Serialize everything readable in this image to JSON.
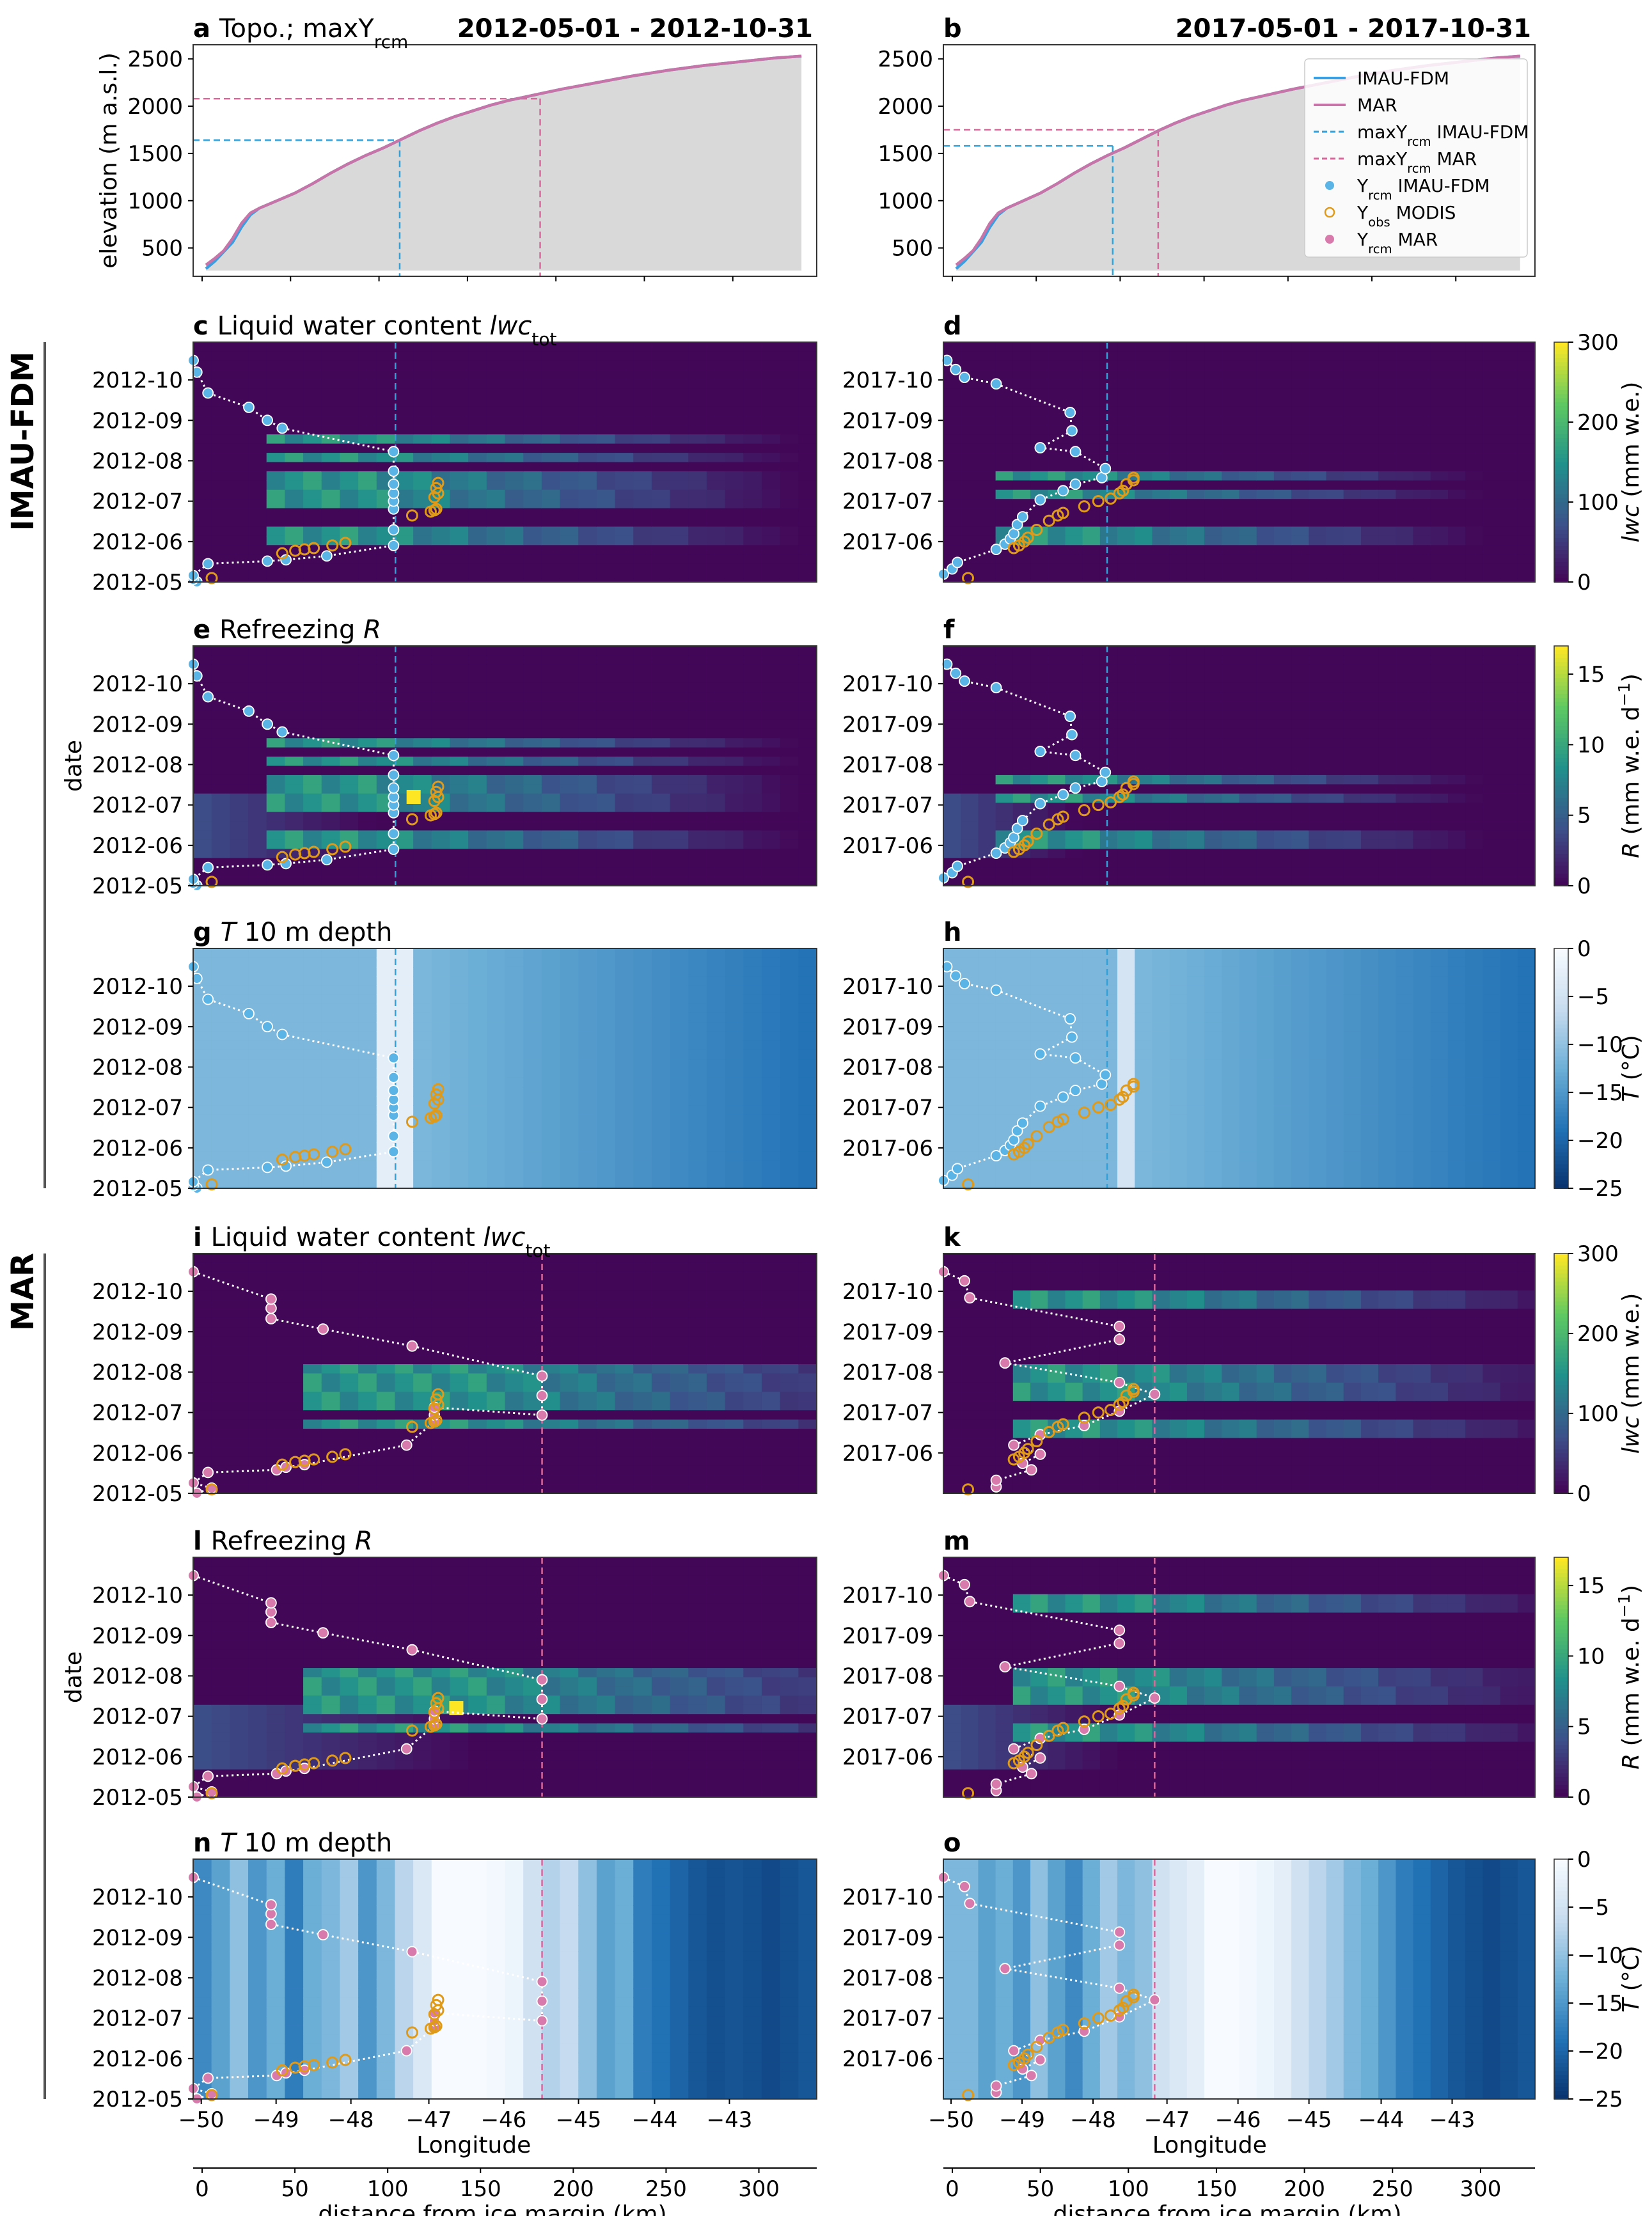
{
  "figure": {
    "row_labels": [
      "IMAU-FDM",
      "MAR"
    ],
    "bottom_xlabels": [
      "Longitude",
      "distance from ice margin (km)"
    ],
    "ylabel_date": "date"
  },
  "chart_data": [
    {
      "panel": "a",
      "type": "area",
      "column": "left",
      "title": "Topo.; maxY",
      "title_sub": "rcm",
      "title_right": "2012-05-01 - 2012-10-31",
      "ylabel": "elevation (m a.s.l.)",
      "xlim": [
        0,
        340
      ],
      "ylim": [
        200,
        2650
      ],
      "yticks": [
        500,
        1000,
        1500,
        2000,
        2500
      ],
      "x": [
        0,
        5,
        10,
        15,
        20,
        25,
        30,
        40,
        50,
        60,
        70,
        80,
        90,
        100,
        110,
        120,
        130,
        140,
        150,
        160,
        170,
        180,
        190,
        200,
        220,
        240,
        260,
        280,
        300,
        320,
        335
      ],
      "series": [
        {
          "name": "IMAU-FDM",
          "values": [
            280,
            360,
            460,
            560,
            720,
            850,
            920,
            1000,
            1080,
            1180,
            1290,
            1390,
            1480,
            1560,
            1650,
            1740,
            1820,
            1890,
            1950,
            2010,
            2060,
            2100,
            2140,
            2180,
            2250,
            2320,
            2380,
            2430,
            2470,
            2510,
            2530
          ]
        },
        {
          "name": "MAR",
          "values": [
            320,
            390,
            470,
            600,
            760,
            870,
            920,
            1000,
            1080,
            1180,
            1290,
            1390,
            1480,
            1560,
            1650,
            1740,
            1820,
            1890,
            1950,
            2010,
            2060,
            2100,
            2140,
            2180,
            2250,
            2320,
            2380,
            2430,
            2470,
            2510,
            2530
          ]
        }
      ],
      "max_lines": [
        {
          "name": "maxY_rcm IMAU-FDM",
          "x": 109,
          "y": 1640,
          "color": "#34a0d8"
        },
        {
          "name": "maxY_rcm MAR",
          "x": 188,
          "y": 2080,
          "color": "#d9689d"
        }
      ]
    },
    {
      "panel": "b",
      "type": "area",
      "column": "right",
      "title": "",
      "title_right": "2017-05-01 - 2017-10-31",
      "xlim": [
        0,
        340
      ],
      "ylim": [
        200,
        2650
      ],
      "yticks": [
        500,
        1000,
        1500,
        2000,
        2500
      ],
      "x": [
        0,
        5,
        10,
        15,
        20,
        25,
        30,
        40,
        50,
        60,
        70,
        80,
        90,
        100,
        110,
        120,
        130,
        140,
        150,
        160,
        170,
        180,
        190,
        200,
        220,
        240,
        260,
        280,
        300,
        320,
        335
      ],
      "series": [
        {
          "name": "IMAU-FDM",
          "values": [
            280,
            360,
            460,
            560,
            720,
            850,
            920,
            1000,
            1080,
            1180,
            1290,
            1390,
            1480,
            1560,
            1650,
            1740,
            1820,
            1890,
            1950,
            2010,
            2060,
            2100,
            2140,
            2180,
            2250,
            2320,
            2380,
            2430,
            2470,
            2510,
            2530
          ]
        },
        {
          "name": "MAR",
          "values": [
            320,
            390,
            470,
            600,
            760,
            870,
            920,
            1000,
            1080,
            1180,
            1290,
            1390,
            1480,
            1560,
            1650,
            1740,
            1820,
            1890,
            1950,
            2010,
            2060,
            2100,
            2140,
            2180,
            2250,
            2320,
            2380,
            2430,
            2470,
            2510,
            2530
          ]
        }
      ],
      "max_lines": [
        {
          "name": "maxY_rcm IMAU-FDM",
          "x": 93,
          "y": 1580,
          "color": "#34a0d8"
        },
        {
          "name": "maxY_rcm MAR",
          "x": 120,
          "y": 1750,
          "color": "#d9689d"
        }
      ],
      "legend": {
        "position": "upper right",
        "entries": [
          {
            "label": "IMAU-FDM",
            "kind": "line",
            "color": "#3a9ee0"
          },
          {
            "label": "MAR",
            "kind": "line",
            "color": "#c774a8"
          },
          {
            "label": "maxY",
            "sub": "rcm",
            "suffix": " IMAU-FDM",
            "kind": "dash",
            "color": "#34a0d8"
          },
          {
            "label": "maxY",
            "sub": "rcm",
            "suffix": " MAR",
            "kind": "dash",
            "color": "#d9689d"
          },
          {
            "label": "Y",
            "sub": "rcm",
            "suffix": " IMAU-FDM",
            "kind": "dot",
            "color": "#5ab4e6"
          },
          {
            "label": "Y",
            "sub": "obs",
            "suffix": " MODIS",
            "kind": "ring",
            "color": "#e09a1a"
          },
          {
            "label": "Y",
            "sub": "rcm",
            "suffix": " MAR",
            "kind": "dot",
            "color": "#d87aab"
          }
        ]
      }
    },
    {
      "panel": "c",
      "type": "heatmap",
      "model": "IMAU-FDM",
      "variable": "lwc",
      "year": 2012,
      "title": "Liquid water content ",
      "title_italic": "lwc",
      "title_sub": "tot",
      "maxline_km": 109,
      "marker_color": "#5ab4e6",
      "yticks": [
        "2012-05",
        "2012-06",
        "2012-07",
        "2012-08",
        "2012-09",
        "2012-10"
      ]
    },
    {
      "panel": "d",
      "type": "heatmap",
      "model": "IMAU-FDM",
      "variable": "lwc",
      "year": 2017,
      "title": "",
      "maxline_km": 93,
      "marker_color": "#5ab4e6",
      "yticks": [
        "2017-06",
        "2017-07",
        "2017-08",
        "2017-09",
        "2017-10"
      ],
      "colorbar": {
        "label_italic": "lwc",
        "label": " (mm w.e.)",
        "ticks": [
          0,
          100,
          200,
          300
        ],
        "range": [
          0,
          300
        ],
        "cmap": "viridis"
      }
    },
    {
      "panel": "e",
      "type": "heatmap",
      "model": "IMAU-FDM",
      "variable": "R",
      "year": 2012,
      "title": "Refreezing ",
      "title_italic": "R",
      "ylabel": "date",
      "maxline_km": 109,
      "marker_color": "#5ab4e6",
      "yticks": [
        "2012-05",
        "2012-06",
        "2012-07",
        "2012-08",
        "2012-09",
        "2012-10"
      ]
    },
    {
      "panel": "f",
      "type": "heatmap",
      "model": "IMAU-FDM",
      "variable": "R",
      "year": 2017,
      "title": "",
      "maxline_km": 93,
      "marker_color": "#5ab4e6",
      "yticks": [
        "2017-06",
        "2017-07",
        "2017-08",
        "2017-09",
        "2017-10"
      ],
      "colorbar": {
        "label_italic": "R",
        "label": " (mm w.e. d",
        "sup": "−1",
        "close": ")",
        "ticks": [
          0,
          5,
          10,
          15
        ],
        "range": [
          0,
          17
        ],
        "cmap": "viridis"
      }
    },
    {
      "panel": "g",
      "type": "heatmap",
      "model": "IMAU-FDM",
      "variable": "T",
      "year": 2012,
      "title": " 10 m depth",
      "title_italic": "T",
      "maxline_km": 109,
      "marker_color": "#5ab4e6",
      "yticks": [
        "2012-05",
        "2012-06",
        "2012-07",
        "2012-08",
        "2012-09",
        "2012-10"
      ]
    },
    {
      "panel": "h",
      "type": "heatmap",
      "model": "IMAU-FDM",
      "variable": "T",
      "year": 2017,
      "title": "",
      "maxline_km": 93,
      "marker_color": "#5ab4e6",
      "yticks": [
        "2017-06",
        "2017-07",
        "2017-08",
        "2017-09",
        "2017-10"
      ],
      "colorbar": {
        "label_italic": "T",
        "label": " (°C)",
        "ticks": [
          0,
          -5,
          -10,
          -15,
          -20,
          -25
        ],
        "range": [
          -25,
          0
        ],
        "cmap": "blues_r"
      }
    },
    {
      "panel": "i",
      "type": "heatmap",
      "model": "MAR",
      "variable": "lwc",
      "year": 2012,
      "title": "Liquid water content ",
      "title_italic": "lwc",
      "title_sub": "tot",
      "maxline_km": 188,
      "marker_color": "#d87aab",
      "yticks": [
        "2012-05",
        "2012-06",
        "2012-07",
        "2012-08",
        "2012-09",
        "2012-10"
      ]
    },
    {
      "panel": "k",
      "type": "heatmap",
      "model": "MAR",
      "variable": "lwc",
      "year": 2017,
      "title": "",
      "maxline_km": 120,
      "marker_color": "#d87aab",
      "yticks": [
        "2017-06",
        "2017-07",
        "2017-08",
        "2017-09",
        "2017-10"
      ],
      "colorbar": {
        "label_italic": "lwc",
        "label": " (mm w.e.)",
        "ticks": [
          0,
          100,
          200,
          300
        ],
        "range": [
          0,
          300
        ],
        "cmap": "viridis"
      }
    },
    {
      "panel": "l",
      "type": "heatmap",
      "model": "MAR",
      "variable": "R",
      "year": 2012,
      "title": "Refreezing ",
      "title_italic": "R",
      "ylabel": "date",
      "maxline_km": 188,
      "marker_color": "#d87aab",
      "yticks": [
        "2012-05",
        "2012-06",
        "2012-07",
        "2012-08",
        "2012-09",
        "2012-10"
      ]
    },
    {
      "panel": "m",
      "type": "heatmap",
      "model": "MAR",
      "variable": "R",
      "year": 2017,
      "title": "",
      "maxline_km": 120,
      "marker_color": "#d87aab",
      "yticks": [
        "2017-06",
        "2017-07",
        "2017-08",
        "2017-09",
        "2017-10"
      ],
      "colorbar": {
        "label_italic": "R",
        "label": " (mm w.e. d",
        "sup": "−1",
        "close": ")",
        "ticks": [
          0,
          5,
          10,
          15
        ],
        "range": [
          0,
          17
        ],
        "cmap": "viridis"
      }
    },
    {
      "panel": "n",
      "type": "heatmap",
      "model": "MAR",
      "variable": "T",
      "year": 2012,
      "title": " 10 m depth",
      "title_italic": "T",
      "maxline_km": 188,
      "marker_color": "#d87aab",
      "yticks": [
        "2012-05",
        "2012-06",
        "2012-07",
        "2012-08",
        "2012-09",
        "2012-10"
      ],
      "xticks_lon": [
        "−50",
        "−49",
        "−48",
        "−47",
        "−46",
        "−45",
        "−44",
        "−43"
      ],
      "xticks_km": [
        "0",
        "50",
        "100",
        "150",
        "200",
        "250",
        "300"
      ]
    },
    {
      "panel": "o",
      "type": "heatmap",
      "model": "MAR",
      "variable": "T",
      "year": 2017,
      "title": "",
      "maxline_km": 120,
      "marker_color": "#d87aab",
      "yticks": [
        "2017-06",
        "2017-07",
        "2017-08",
        "2017-09",
        "2017-10"
      ],
      "xticks_lon": [
        "−50",
        "−49",
        "−48",
        "−47",
        "−46",
        "−45",
        "−44",
        "−43"
      ],
      "xticks_km": [
        "0",
        "50",
        "100",
        "150",
        "200",
        "250",
        "300"
      ],
      "colorbar": {
        "label_italic": "T",
        "label": " (°C)",
        "ticks": [
          0,
          -5,
          -10,
          -15,
          -20,
          -25
        ],
        "range": [
          -25,
          0
        ],
        "cmap": "blues_r"
      }
    }
  ],
  "traces": {
    "imau2012": [
      [
        2,
        0.1
      ],
      [
        0,
        2
      ],
      [
        0,
        5
      ],
      [
        8,
        14
      ],
      [
        40,
        16
      ],
      [
        50,
        17
      ],
      [
        72,
        20
      ],
      [
        108,
        28
      ],
      [
        108,
        40
      ],
      [
        108,
        56
      ],
      [
        108,
        62
      ],
      [
        108,
        68
      ],
      [
        108,
        75
      ],
      [
        108,
        85
      ],
      [
        108,
        100
      ],
      [
        48,
        118
      ],
      [
        40,
        124
      ],
      [
        30,
        134
      ],
      [
        8,
        145
      ],
      [
        2,
        161
      ],
      [
        0,
        170
      ]
    ],
    "imau2017": [
      [
        0,
        6
      ],
      [
        5,
        10
      ],
      [
        8,
        15
      ],
      [
        30,
        25
      ],
      [
        35,
        29
      ],
      [
        38,
        33
      ],
      [
        40,
        37
      ],
      [
        42,
        44
      ],
      [
        45,
        50
      ],
      [
        55,
        63
      ],
      [
        68,
        70
      ],
      [
        75,
        75
      ],
      [
        90,
        80
      ],
      [
        92,
        87
      ],
      [
        75,
        100
      ],
      [
        55,
        103
      ],
      [
        73,
        116
      ],
      [
        72,
        130
      ],
      [
        30,
        152
      ],
      [
        12,
        157
      ],
      [
        7,
        163
      ],
      [
        2,
        170
      ]
    ],
    "mar2012": [
      [
        2,
        0.1
      ],
      [
        10,
        4
      ],
      [
        0,
        8
      ],
      [
        8,
        16
      ],
      [
        45,
        18
      ],
      [
        50,
        20
      ],
      [
        60,
        22
      ],
      [
        115,
        37
      ],
      [
        130,
        55
      ],
      [
        130,
        60
      ],
      [
        130,
        66
      ],
      [
        188,
        60
      ],
      [
        188,
        75
      ],
      [
        188,
        90
      ],
      [
        118,
        113
      ],
      [
        70,
        126
      ],
      [
        42,
        134
      ],
      [
        42,
        142
      ],
      [
        42,
        149
      ],
      [
        0,
        170
      ]
    ],
    "mar2017": [
      [
        30,
        5
      ],
      [
        30,
        10
      ],
      [
        50,
        18
      ],
      [
        45,
        23
      ],
      [
        55,
        30
      ],
      [
        40,
        37
      ],
      [
        55,
        45
      ],
      [
        80,
        52
      ],
      [
        100,
        63
      ],
      [
        120,
        76
      ],
      [
        100,
        85
      ],
      [
        35,
        100
      ],
      [
        100,
        118
      ],
      [
        100,
        128
      ],
      [
        15,
        150
      ],
      [
        12,
        163
      ],
      [
        0,
        170
      ]
    ],
    "obs2012": [
      [
        10,
        3
      ],
      [
        48,
        22
      ],
      [
        55,
        24
      ],
      [
        60,
        25
      ],
      [
        65,
        26
      ],
      [
        75,
        28
      ],
      [
        82,
        30
      ],
      [
        118,
        51
      ],
      [
        128,
        54
      ],
      [
        130,
        55
      ],
      [
        131,
        56
      ],
      [
        130,
        65
      ],
      [
        132,
        68
      ],
      [
        131,
        72
      ],
      [
        132,
        76
      ]
    ],
    "obs2017": [
      [
        14,
        3
      ],
      [
        40,
        26
      ],
      [
        43,
        28
      ],
      [
        46,
        31
      ],
      [
        48,
        34
      ],
      [
        53,
        40
      ],
      [
        60,
        47
      ],
      [
        65,
        51
      ],
      [
        68,
        53
      ],
      [
        80,
        58
      ],
      [
        88,
        62
      ],
      [
        95,
        64
      ],
      [
        100,
        68
      ],
      [
        102,
        70
      ],
      [
        104,
        75
      ],
      [
        108,
        78
      ],
      [
        108,
        80
      ]
    ]
  }
}
